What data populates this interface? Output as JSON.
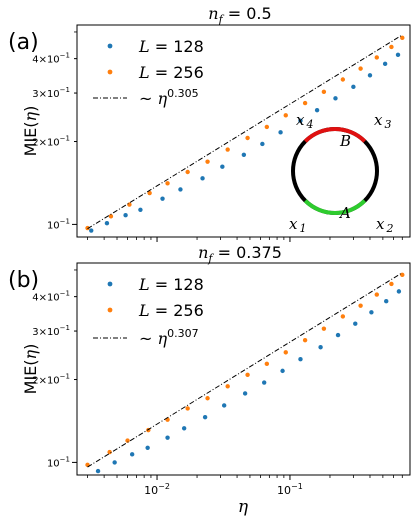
{
  "figure": {
    "panel_a_tag": "(a)",
    "panel_b_tag": "(b)",
    "panel_a_title": "n_f = 0.5",
    "panel_b_title": "n_f = 0.375",
    "ylabel": "MIE(η)",
    "xlabel": "η",
    "legend_l128": "L = 128",
    "legend_l256": "L = 256",
    "legend_fit_a": "~ η^0.305",
    "legend_fit_b": "~ η^0.307",
    "inset": {
      "label_x1": "x 1",
      "label_x2": "x 2",
      "label_x3": "x 3",
      "label_x4": "x 4",
      "label_A": "A",
      "label_B": "B",
      "arc_A_color": "#2ecc2e",
      "arc_B_color": "#e01010",
      "circle_color": "#000000"
    },
    "colors": {
      "l128": "#1f77b4",
      "l256": "#ff7f0e",
      "fit": "#000000"
    },
    "y_tick_labels": [
      "10^-1",
      "2×10^-1",
      "3×10^-1",
      "4×10^-1"
    ],
    "x_tick_labels": [
      "10^-2",
      "10^-1"
    ]
  },
  "chart_data": [
    {
      "type": "scatter",
      "title": "n_f = 0.5",
      "xlabel": "η",
      "ylabel": "MIE(η)",
      "xscale": "log",
      "yscale": "log",
      "xlim": [
        0.0025,
        0.8
      ],
      "ylim": [
        0.09,
        0.53
      ],
      "legend": "upper-left",
      "series": [
        {
          "name": "L = 128",
          "color": "#1f77b4",
          "x": [
            0.0032,
            0.0042,
            0.0058,
            0.0075,
            0.011,
            0.015,
            0.022,
            0.031,
            0.045,
            0.062,
            0.085,
            0.12,
            0.16,
            0.22,
            0.3,
            0.4,
            0.52,
            0.65
          ],
          "y": [
            0.095,
            0.101,
            0.108,
            0.113,
            0.124,
            0.134,
            0.147,
            0.162,
            0.179,
            0.196,
            0.216,
            0.238,
            0.26,
            0.287,
            0.316,
            0.348,
            0.383,
            0.413
          ]
        },
        {
          "name": "L = 256",
          "color": "#ff7f0e",
          "x": [
            0.003,
            0.0045,
            0.0062,
            0.0088,
            0.012,
            0.017,
            0.024,
            0.034,
            0.048,
            0.067,
            0.093,
            0.13,
            0.18,
            0.25,
            0.34,
            0.45,
            0.58,
            0.7
          ],
          "y": [
            0.097,
            0.107,
            0.118,
            0.13,
            0.141,
            0.155,
            0.169,
            0.187,
            0.206,
            0.226,
            0.249,
            0.276,
            0.303,
            0.336,
            0.368,
            0.404,
            0.441,
            0.476
          ]
        },
        {
          "name": "~ η^0.305",
          "kind": "fit",
          "exponent": 0.305,
          "x": [
            0.003,
            0.7
          ],
          "y": [
            0.0965,
            0.4877
          ]
        }
      ]
    },
    {
      "type": "scatter",
      "title": "n_f = 0.375",
      "xlabel": "η",
      "ylabel": "MIE(η)",
      "xscale": "log",
      "yscale": "log",
      "xlim": [
        0.0025,
        0.8
      ],
      "ylim": [
        0.09,
        0.53
      ],
      "legend": "upper-left",
      "series": [
        {
          "name": "L = 128",
          "color": "#1f77b4",
          "x": [
            0.0036,
            0.0048,
            0.0065,
            0.0085,
            0.012,
            0.016,
            0.023,
            0.032,
            0.046,
            0.064,
            0.088,
            0.12,
            0.17,
            0.23,
            0.31,
            0.41,
            0.53,
            0.66
          ],
          "y": [
            0.093,
            0.1,
            0.107,
            0.113,
            0.123,
            0.133,
            0.146,
            0.161,
            0.178,
            0.195,
            0.215,
            0.237,
            0.262,
            0.29,
            0.319,
            0.351,
            0.385,
            0.418
          ]
        },
        {
          "name": "L = 256",
          "color": "#ff7f0e",
          "x": [
            0.003,
            0.0044,
            0.006,
            0.0086,
            0.012,
            0.017,
            0.024,
            0.034,
            0.048,
            0.067,
            0.093,
            0.13,
            0.18,
            0.25,
            0.34,
            0.45,
            0.58,
            0.7
          ],
          "y": [
            0.098,
            0.109,
            0.12,
            0.131,
            0.143,
            0.157,
            0.171,
            0.189,
            0.208,
            0.228,
            0.251,
            0.278,
            0.306,
            0.339,
            0.371,
            0.407,
            0.445,
            0.48
          ]
        },
        {
          "name": "~ η^0.307",
          "kind": "fit",
          "exponent": 0.307,
          "x": [
            0.003,
            0.7
          ],
          "y": [
            0.0962,
            0.4886
          ]
        }
      ]
    }
  ]
}
